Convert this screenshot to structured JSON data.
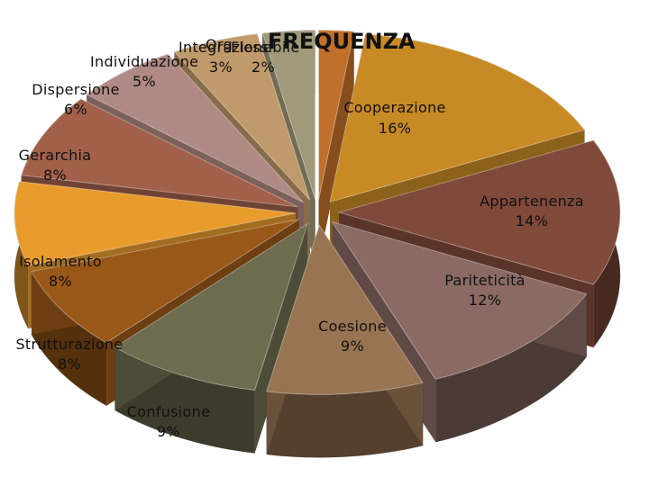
{
  "chart_data": {
    "type": "pie",
    "style": "exploded 3d pie",
    "title": "FREQUENZA",
    "slices": [
      {
        "label": "Flessibile",
        "value": 2,
        "value_label": "2%",
        "color": "#c0702a"
      },
      {
        "label": "Cooperazione",
        "value": 16,
        "value_label": "16%",
        "color": "#c88a24"
      },
      {
        "label": "Appartenenza",
        "value": 14,
        "value_label": "14%",
        "color": "#804a3a"
      },
      {
        "label": "Pariteticità",
        "value": 12,
        "value_label": "12%",
        "color": "#8a6a62"
      },
      {
        "label": "Coesione",
        "value": 9,
        "value_label": "9%",
        "color": "#987452"
      },
      {
        "label": "Confusione",
        "value": 9,
        "value_label": "9%",
        "color": "#6e6c50"
      },
      {
        "label": "Strutturazione",
        "value": 8,
        "value_label": "8%",
        "color": "#9a5818"
      },
      {
        "label": "Isolamento",
        "value": 8,
        "value_label": "8%",
        "color": "#e89c2c"
      },
      {
        "label": "Gerarchia",
        "value": 8,
        "value_label": "8%",
        "color": "#a2604a"
      },
      {
        "label": "Dispersione",
        "value": 6,
        "value_label": "6%",
        "color": "#b08a84"
      },
      {
        "label": "Individuazione",
        "value": 5,
        "value_label": "5%",
        "color": "#c09a6a"
      },
      {
        "label": "Integrazione",
        "value": 3,
        "value_label": "3%",
        "color": "#a09a7a"
      },
      {
        "label": "Org",
        "value": 0,
        "value_label": "",
        "color": "#b0a090"
      }
    ]
  }
}
